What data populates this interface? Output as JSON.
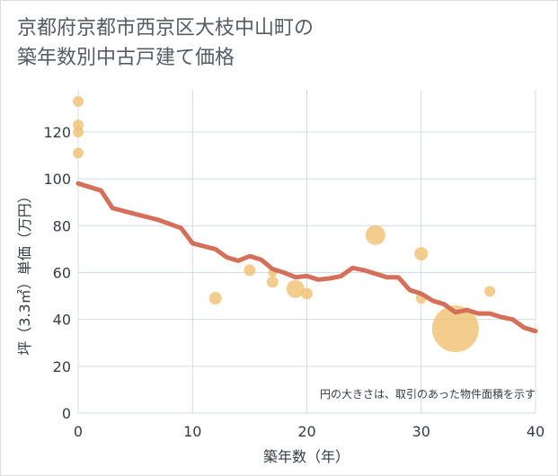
{
  "title_lines": [
    "京都府京都市西京区大枝中山町の",
    "築年数別中古戸建て価格"
  ],
  "note": "円の大きさは、取引のあった物件面積を示す",
  "colors": {
    "line": "#d4705a",
    "bubble": "#f0c070",
    "grid": "#d3dce6",
    "axis_text": "#333d47",
    "title_text": "#555c66"
  },
  "chart_data": {
    "type": "scatter",
    "xlabel": "築年数（年）",
    "ylabel": "坪（3.3㎡）単価（万円）",
    "xlim": [
      0,
      40
    ],
    "ylim": [
      0,
      138
    ],
    "xticks": [
      0,
      10,
      20,
      30,
      40
    ],
    "yticks": [
      0,
      20,
      40,
      60,
      80,
      100,
      120
    ],
    "grid": true,
    "series": [
      {
        "type": "line",
        "points": [
          [
            0,
            98
          ],
          [
            2,
            95
          ],
          [
            3,
            87.5
          ],
          [
            5,
            85
          ],
          [
            7,
            82.5
          ],
          [
            9,
            79
          ],
          [
            10,
            72.5
          ],
          [
            12,
            70
          ],
          [
            13,
            66.5
          ],
          [
            14,
            65
          ],
          [
            15,
            67
          ],
          [
            16,
            65.5
          ],
          [
            17,
            61.5
          ],
          [
            18,
            60
          ],
          [
            19,
            58
          ],
          [
            20,
            58.5
          ],
          [
            21,
            57
          ],
          [
            22,
            57.5
          ],
          [
            23,
            58.5
          ],
          [
            24,
            62
          ],
          [
            25,
            61
          ],
          [
            26,
            59.5
          ],
          [
            27,
            58
          ],
          [
            28,
            58
          ],
          [
            29,
            52.5
          ],
          [
            30,
            51
          ],
          [
            31,
            48
          ],
          [
            32,
            46.5
          ],
          [
            33,
            43
          ],
          [
            34,
            44
          ],
          [
            35,
            42.5
          ],
          [
            36,
            42.5
          ],
          [
            37,
            41
          ],
          [
            38,
            40
          ],
          [
            39,
            36.5
          ],
          [
            40,
            35
          ]
        ]
      },
      {
        "type": "bubble",
        "points": [
          {
            "x": 0,
            "y": 133,
            "size": 6
          },
          {
            "x": 0,
            "y": 123,
            "size": 6
          },
          {
            "x": 0,
            "y": 120,
            "size": 6
          },
          {
            "x": 0,
            "y": 111,
            "size": 6
          },
          {
            "x": 12,
            "y": 49,
            "size": 7
          },
          {
            "x": 15,
            "y": 61,
            "size": 6.5
          },
          {
            "x": 17,
            "y": 56,
            "size": 6.5
          },
          {
            "x": 17,
            "y": 60,
            "size": 5
          },
          {
            "x": 19,
            "y": 53,
            "size": 10
          },
          {
            "x": 20,
            "y": 51,
            "size": 6.5
          },
          {
            "x": 26,
            "y": 76,
            "size": 11
          },
          {
            "x": 30,
            "y": 68,
            "size": 7.5
          },
          {
            "x": 30,
            "y": 49,
            "size": 6
          },
          {
            "x": 33,
            "y": 36,
            "size": 26
          },
          {
            "x": 36,
            "y": 52,
            "size": 6
          }
        ]
      }
    ]
  }
}
